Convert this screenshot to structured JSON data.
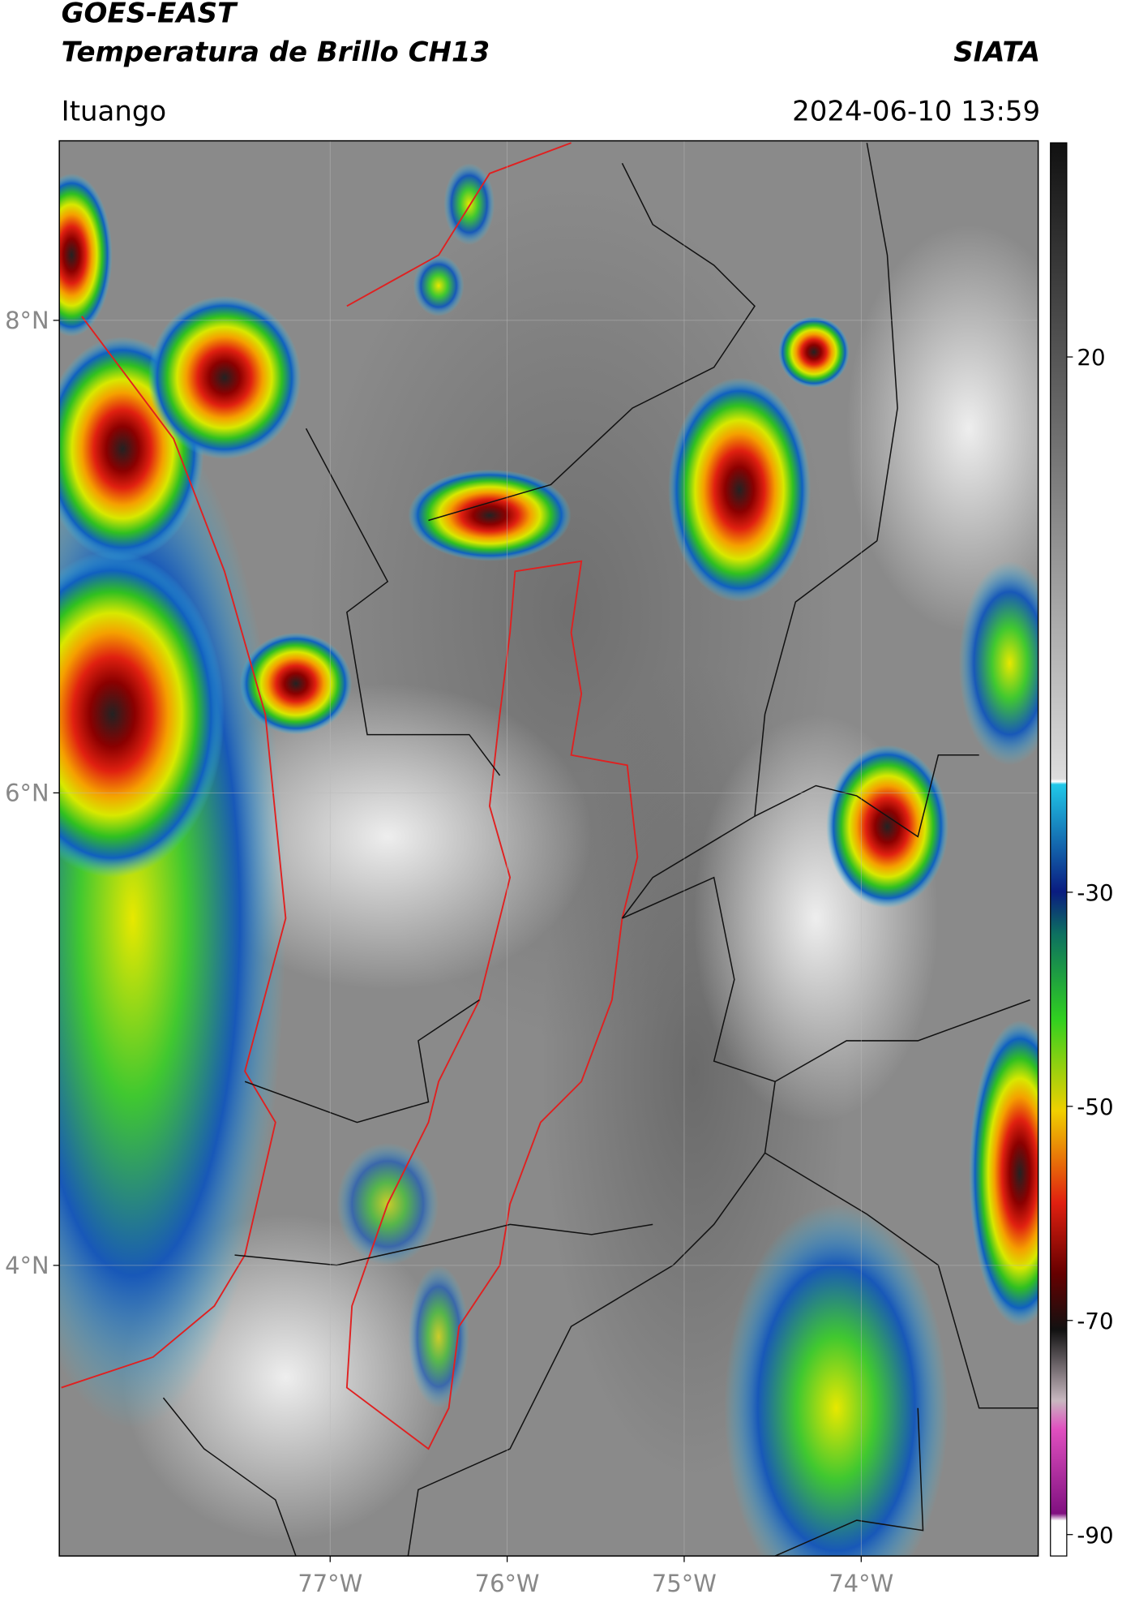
{
  "header": {
    "title_line1": "GOES-EAST",
    "title_line2": "Temperatura de Brillo CH13",
    "org": "SIATA",
    "region": "Ituango",
    "timestamp": "2024-06-10 13:59"
  },
  "map": {
    "lat_range": [
      2.77,
      8.76
    ],
    "lon_range": [
      -78.53,
      -73.0
    ],
    "lat_ticks": [
      {
        "value": 8,
        "label": "8°N"
      },
      {
        "value": 6,
        "label": "6°N"
      },
      {
        "value": 4,
        "label": "4°N"
      }
    ],
    "lon_ticks": [
      {
        "value": -77,
        "label": "77°W"
      },
      {
        "value": -76,
        "label": "76°W"
      },
      {
        "value": -75,
        "label": "75°W"
      },
      {
        "value": -74,
        "label": "74°W"
      }
    ]
  },
  "colorbar": {
    "range": [
      -92,
      40
    ],
    "ticks": [
      20,
      -30,
      -50,
      -70,
      -90
    ]
  }
}
